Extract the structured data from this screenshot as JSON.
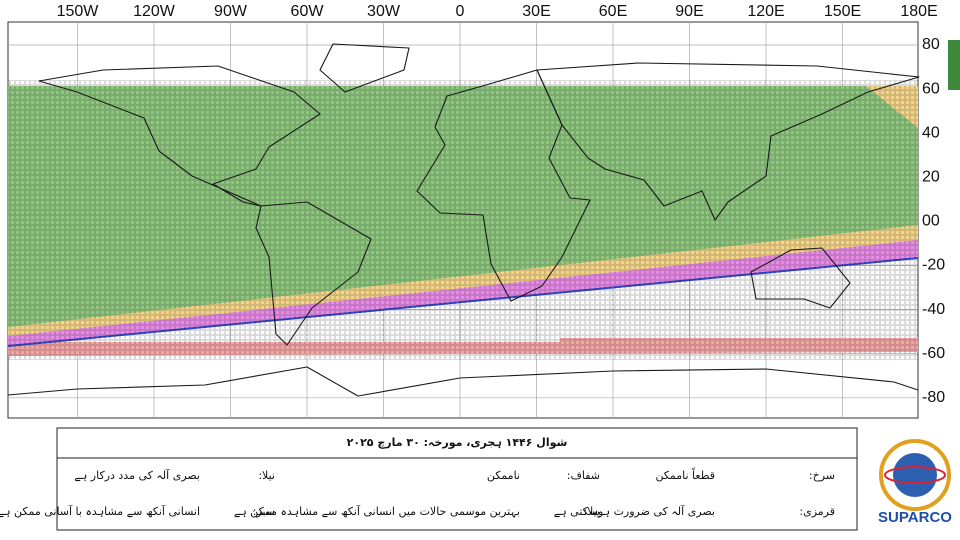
{
  "map": {
    "lon_labels": [
      "150W",
      "120W",
      "90W",
      "60W",
      "30W",
      "0",
      "30E",
      "60E",
      "90E",
      "120E",
      "150E",
      "180E"
    ],
    "lat_labels": [
      "80",
      "60",
      "40",
      "20",
      "00",
      "-20",
      "-40",
      "-60",
      "-80"
    ]
  },
  "legend": {
    "title": "شوال ۱۴۴۶ ہجری، مورخہ: ۳۰ مارچ ۲۰۲۵",
    "rows": [
      [
        [
          "سرخ:",
          "قطعاً ناممکن"
        ],
        [
          "شفاف:",
          "ناممکن"
        ],
        [
          "نیلا:",
          "بصری آلہ کی مدد درکار ہے"
        ]
      ],
      [
        [
          "قرمزی:",
          "بصری آلہ کی ضرورت ہوسکتی ہے"
        ],
        [
          "پیلا:",
          "بہترین موسمی حالات میں انسانی آنکھ سے مشاہدہ ممکن ہے"
        ],
        [
          "سبز:",
          "انسانی آنکھ سے مشاہدہ با آسانی ممکن ہے"
        ]
      ]
    ]
  },
  "logo": {
    "name": "SUPARCO"
  }
}
